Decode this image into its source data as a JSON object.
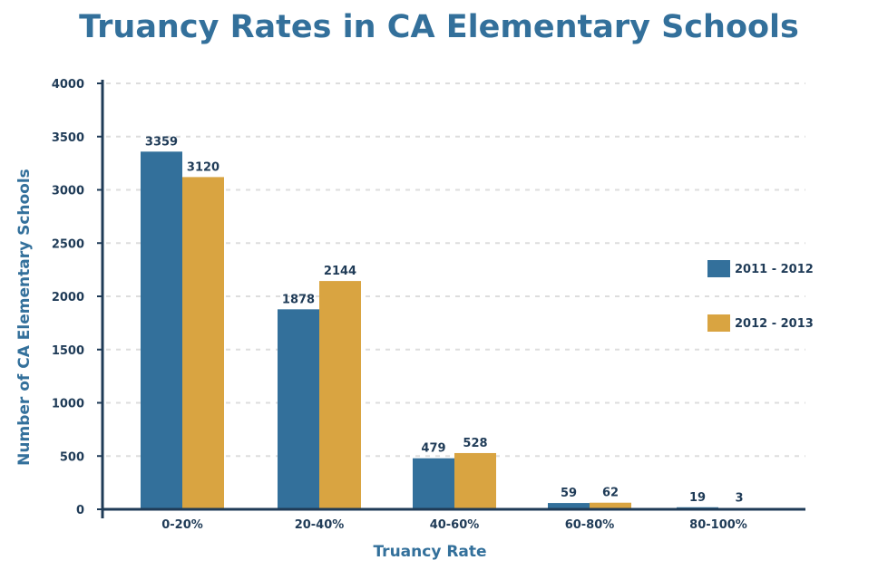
{
  "chart_data": {
    "type": "bar",
    "title": "Truancy Rates in CA Elementary Schools",
    "xlabel": "Truancy Rate",
    "ylabel": "Number of CA Elementary Schools",
    "categories": [
      "0-20%",
      "20-40%",
      "40-60%",
      "60-80%",
      "80-100%"
    ],
    "series": [
      {
        "name": "2011 - 2012",
        "values": [
          3359,
          1878,
          479,
          59,
          19
        ],
        "color": "#33709b"
      },
      {
        "name": "2012 - 2013",
        "values": [
          3120,
          2144,
          528,
          62,
          3
        ],
        "color": "#d9a441"
      }
    ],
    "ylim": [
      0,
      4000
    ],
    "yticks": [
      0,
      500,
      1000,
      1500,
      2000,
      2500,
      3000,
      3500,
      4000
    ],
    "grid": true,
    "legend_position": "right"
  }
}
